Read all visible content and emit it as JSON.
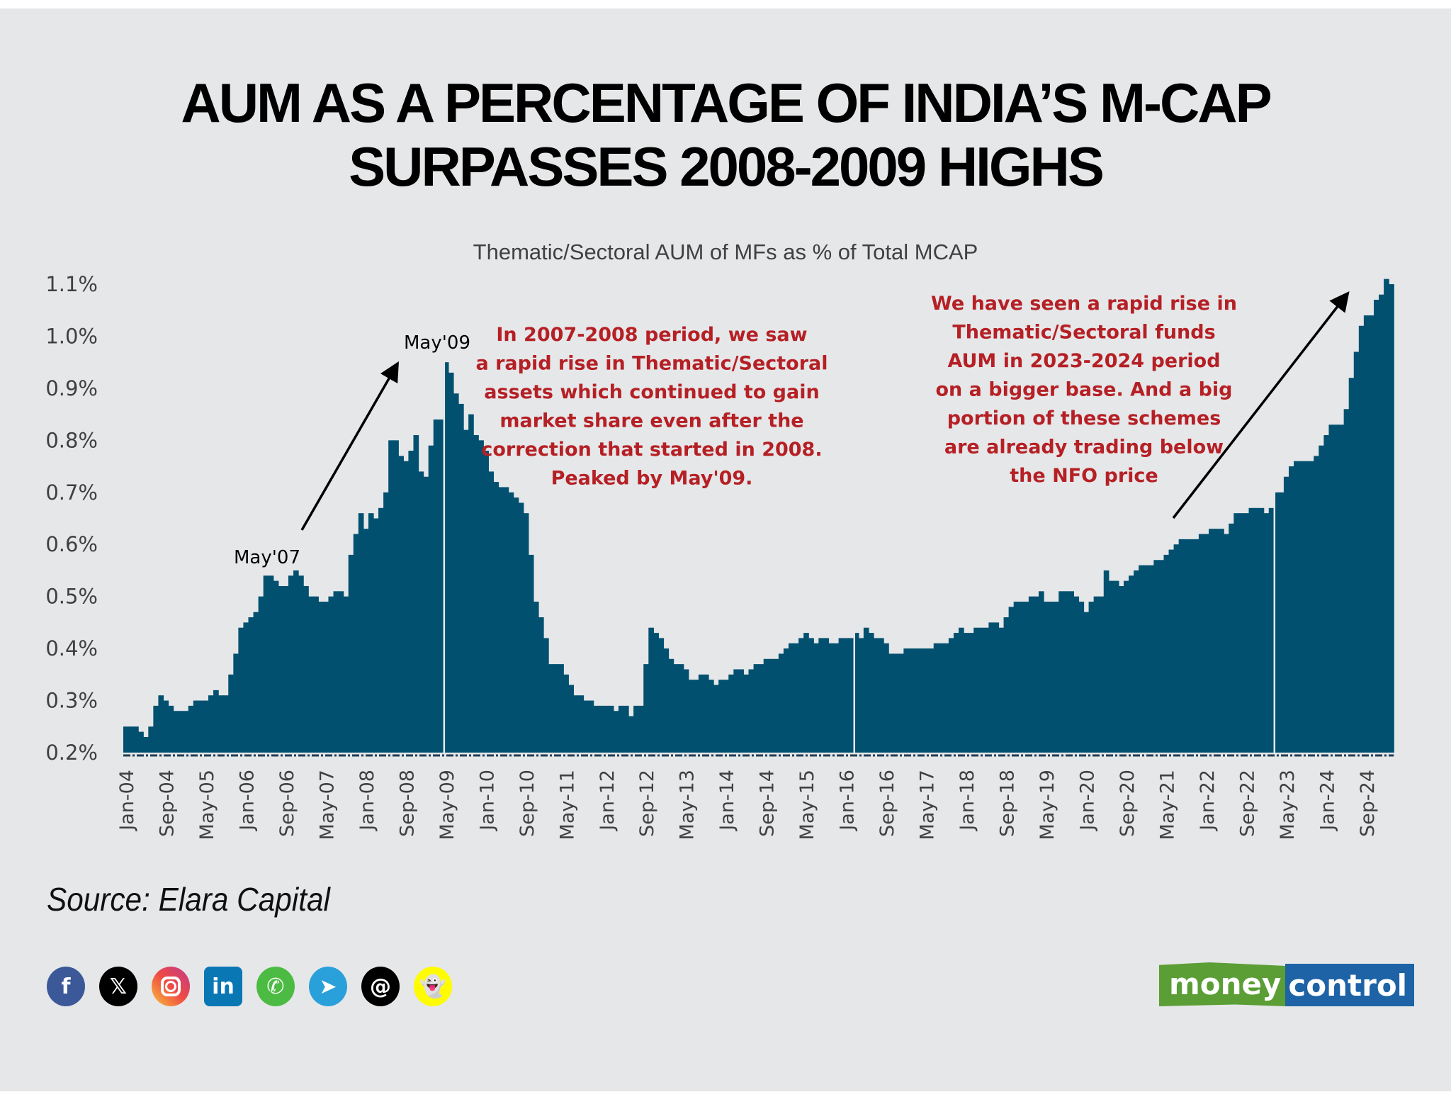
{
  "title_line1": "AUM AS A PERCENTAGE OF INDIA’S M-CAP",
  "title_line2": "SURPASSES 2008-2009 HIGHS",
  "source": "Source: Elara Capital",
  "social_icons": [
    "facebook-icon",
    "x-icon",
    "instagram-icon",
    "linkedin-icon",
    "whatsapp-icon",
    "telegram-icon",
    "threads-icon",
    "snapchat-icon"
  ],
  "logo": {
    "part1": "money",
    "part2": "control",
    "color1": "#5a9e35",
    "color2": "#1d63a6"
  },
  "colors": {
    "bar": "#02506f",
    "note": "#b52025",
    "background": "#e6e7e9"
  },
  "chart_data": {
    "type": "area",
    "title": "Thematic/Sectoral AUM of MFs  as % of Total MCAP",
    "xlabel": "",
    "ylabel": "",
    "ylim": [
      0.2,
      1.1
    ],
    "yticks": [
      "0.2%",
      "0.3%",
      "0.4%",
      "0.5%",
      "0.6%",
      "0.7%",
      "0.8%",
      "0.9%",
      "1.0%",
      "1.1%"
    ],
    "start_month": "Jan-04",
    "x_tick_labels": [
      "Jan-04",
      "Sep-04",
      "May-05",
      "Jan-06",
      "Sep-06",
      "May-07",
      "Jan-08",
      "Sep-08",
      "May-09",
      "Jan-10",
      "Sep-10",
      "May-11",
      "Jan-12",
      "Sep-12",
      "May-13",
      "Jan-14",
      "Sep-14",
      "May-15",
      "Jan-16",
      "Sep-16",
      "May-17",
      "Jan-18",
      "Sep-18",
      "May-19",
      "Jan-20",
      "Sep-20",
      "May-21",
      "Jan-22",
      "Sep-22",
      "May-23",
      "Jan-24",
      "Sep-24"
    ],
    "x_tick_step_months": 8,
    "separators_month_index": [
      64,
      146,
      230
    ],
    "values": [
      0.25,
      0.25,
      0.25,
      0.24,
      0.23,
      0.25,
      0.29,
      0.31,
      0.3,
      0.29,
      0.28,
      0.28,
      0.28,
      0.29,
      0.3,
      0.3,
      0.3,
      0.31,
      0.32,
      0.31,
      0.31,
      0.35,
      0.39,
      0.44,
      0.45,
      0.46,
      0.47,
      0.5,
      0.54,
      0.54,
      0.53,
      0.52,
      0.52,
      0.54,
      0.55,
      0.54,
      0.52,
      0.5,
      0.5,
      0.49,
      0.49,
      0.5,
      0.51,
      0.51,
      0.5,
      0.58,
      0.62,
      0.66,
      0.63,
      0.66,
      0.65,
      0.67,
      0.7,
      0.8,
      0.8,
      0.77,
      0.76,
      0.78,
      0.81,
      0.74,
      0.73,
      0.79,
      0.84,
      0.84,
      0.95,
      0.93,
      0.89,
      0.87,
      0.82,
      0.85,
      0.81,
      0.8,
      0.78,
      0.74,
      0.72,
      0.71,
      0.71,
      0.7,
      0.69,
      0.68,
      0.66,
      0.58,
      0.49,
      0.46,
      0.42,
      0.37,
      0.37,
      0.37,
      0.35,
      0.33,
      0.31,
      0.31,
      0.3,
      0.3,
      0.29,
      0.29,
      0.29,
      0.29,
      0.28,
      0.29,
      0.29,
      0.27,
      0.29,
      0.29,
      0.37,
      0.44,
      0.43,
      0.42,
      0.4,
      0.38,
      0.37,
      0.37,
      0.36,
      0.34,
      0.34,
      0.35,
      0.35,
      0.34,
      0.33,
      0.34,
      0.34,
      0.35,
      0.36,
      0.36,
      0.35,
      0.36,
      0.37,
      0.37,
      0.38,
      0.38,
      0.38,
      0.39,
      0.4,
      0.41,
      0.41,
      0.42,
      0.43,
      0.42,
      0.41,
      0.42,
      0.42,
      0.41,
      0.41,
      0.42,
      0.42,
      0.42,
      0.43,
      0.42,
      0.44,
      0.43,
      0.42,
      0.42,
      0.41,
      0.39,
      0.39,
      0.39,
      0.4,
      0.4,
      0.4,
      0.4,
      0.4,
      0.4,
      0.41,
      0.41,
      0.41,
      0.42,
      0.43,
      0.44,
      0.43,
      0.43,
      0.44,
      0.44,
      0.44,
      0.45,
      0.45,
      0.44,
      0.46,
      0.48,
      0.49,
      0.49,
      0.49,
      0.5,
      0.5,
      0.51,
      0.49,
      0.49,
      0.49,
      0.51,
      0.51,
      0.51,
      0.5,
      0.49,
      0.47,
      0.49,
      0.5,
      0.5,
      0.55,
      0.53,
      0.53,
      0.52,
      0.53,
      0.54,
      0.55,
      0.56,
      0.56,
      0.56,
      0.57,
      0.57,
      0.58,
      0.59,
      0.6,
      0.61,
      0.61,
      0.61,
      0.61,
      0.62,
      0.62,
      0.63,
      0.63,
      0.63,
      0.62,
      0.64,
      0.66,
      0.66,
      0.66,
      0.67,
      0.67,
      0.67,
      0.66,
      0.67,
      0.7,
      0.7,
      0.73,
      0.75,
      0.76,
      0.76,
      0.76,
      0.76,
      0.77,
      0.79,
      0.81,
      0.83,
      0.83,
      0.83,
      0.86,
      0.92,
      0.97,
      1.02,
      1.04,
      1.04,
      1.07,
      1.08,
      1.11,
      1.1
    ],
    "annotations": {
      "may07": {
        "label": "May'07",
        "month_index": 40
      },
      "may09": {
        "label": "May'09",
        "month_index": 64
      }
    },
    "notes": {
      "left": [
        "In 2007-2008 period, we saw",
        "a rapid rise in Thematic/Sectoral",
        "assets which continued to gain",
        "market share even after the",
        "correction that started in 2008.",
        "Peaked by May'09."
      ],
      "right": [
        "We have seen a rapid rise in",
        "Thematic/Sectoral funds",
        "AUM in 2023-2024 period",
        "on a bigger base. And a big",
        "portion of these schemes",
        "are already trading below",
        "the NFO price"
      ]
    }
  }
}
